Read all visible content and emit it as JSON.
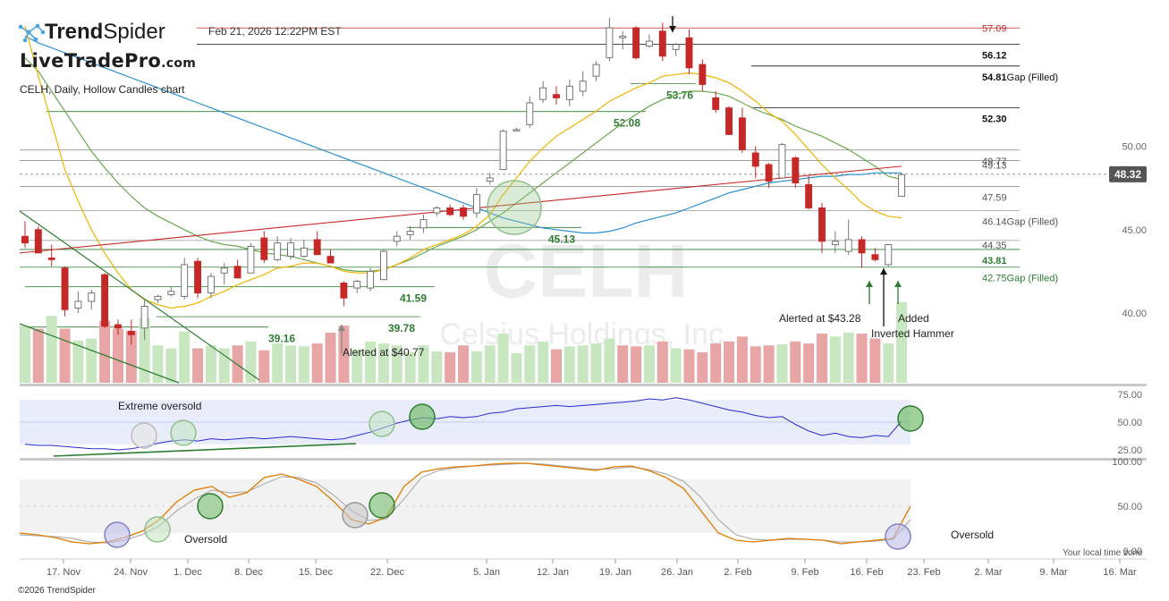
{
  "header": {
    "brand_name": "TrendSpider",
    "brand_bold": "Trend",
    "brand_light": "Spider",
    "datestamp": "Feb 21, 2026 12:22PM EST",
    "watermark_site": "LiveTradePro",
    "watermark_domain": ".com",
    "subtitle": "CELH, Daily, Hollow Candles chart"
  },
  "footer": {
    "copyright": "©2026 TrendSpider",
    "local_time_label": "Your local time zone"
  },
  "chart_data": {
    "type": "candlestick",
    "symbol": "CELH",
    "company": "Celsius Holdings, Inc.",
    "last_price": "48.32",
    "x_ticks": [
      "17. Nov",
      "24. Nov",
      "1. Dec",
      "8. Dec",
      "15. Dec",
      "22. Dec",
      "5. Jan",
      "12. Jan",
      "19. Jan",
      "26. Jan",
      "2. Feb",
      "9. Feb",
      "16. Feb",
      "23. Feb",
      "2. Mar",
      "9. Mar",
      "16. Mar"
    ],
    "y_ticks": [
      "50.00",
      "45.00",
      "40.00"
    ],
    "colors": {
      "up": "#ffffff",
      "down": "#c62828",
      "sma_short": "#f0b400",
      "sma_mid": "#6aa84f",
      "sma_long": "#2a8fd0",
      "trendline": "#c62828",
      "volume_up": "#c8e6c0",
      "volume_down": "#e8a5a5",
      "rsi": "#2b2bcc",
      "stoch_k": "#e07b00",
      "stoch_d": "#b0b0b0",
      "level_green": "#2e7d32",
      "level_red": "#c62828"
    },
    "candles": [
      {
        "o": 44.6,
        "h": 45.5,
        "l": 43.9,
        "c": 44.2
      },
      {
        "o": 45.0,
        "h": 45.2,
        "l": 43.7,
        "c": 43.6
      },
      {
        "o": 43.3,
        "h": 44.1,
        "l": 42.8,
        "c": 43.2
      },
      {
        "o": 42.7,
        "h": 42.8,
        "l": 39.8,
        "c": 40.2
      },
      {
        "o": 40.3,
        "h": 41.3,
        "l": 40.0,
        "c": 40.7
      },
      {
        "o": 40.7,
        "h": 41.4,
        "l": 40.2,
        "c": 41.2
      },
      {
        "o": 42.3,
        "h": 42.4,
        "l": 39.1,
        "c": 39.2
      },
      {
        "o": 39.3,
        "h": 39.6,
        "l": 38.7,
        "c": 39.1
      },
      {
        "o": 38.9,
        "h": 39.6,
        "l": 38.1,
        "c": 38.7
      },
      {
        "o": 39.1,
        "h": 40.8,
        "l": 38.4,
        "c": 40.4
      },
      {
        "o": 40.8,
        "h": 41.1,
        "l": 40.6,
        "c": 41.0
      },
      {
        "o": 41.1,
        "h": 41.6,
        "l": 41.0,
        "c": 41.3
      },
      {
        "o": 41.0,
        "h": 43.3,
        "l": 40.8,
        "c": 42.9
      },
      {
        "o": 43.1,
        "h": 43.3,
        "l": 40.9,
        "c": 41.2
      },
      {
        "o": 41.2,
        "h": 42.4,
        "l": 40.9,
        "c": 42.2
      },
      {
        "o": 42.4,
        "h": 43.0,
        "l": 41.7,
        "c": 42.7
      },
      {
        "o": 42.8,
        "h": 43.2,
        "l": 42.2,
        "c": 42.1
      },
      {
        "o": 42.4,
        "h": 44.2,
        "l": 42.4,
        "c": 44.0
      },
      {
        "o": 44.5,
        "h": 44.9,
        "l": 43.0,
        "c": 43.2
      },
      {
        "o": 43.2,
        "h": 44.6,
        "l": 43.1,
        "c": 44.2
      },
      {
        "o": 43.4,
        "h": 44.5,
        "l": 43.2,
        "c": 44.2
      },
      {
        "o": 43.4,
        "h": 44.4,
        "l": 43.3,
        "c": 43.9
      },
      {
        "o": 44.4,
        "h": 44.9,
        "l": 43.5,
        "c": 43.5
      },
      {
        "o": 43.4,
        "h": 43.8,
        "l": 43.0,
        "c": 43.0
      },
      {
        "o": 41.8,
        "h": 41.9,
        "l": 40.4,
        "c": 40.9
      },
      {
        "o": 41.5,
        "h": 42.0,
        "l": 41.2,
        "c": 41.9
      },
      {
        "o": 41.5,
        "h": 42.7,
        "l": 41.3,
        "c": 42.5
      },
      {
        "o": 42.0,
        "h": 43.8,
        "l": 42.0,
        "c": 43.7
      },
      {
        "o": 44.3,
        "h": 44.9,
        "l": 44.0,
        "c": 44.6
      },
      {
        "o": 44.7,
        "h": 45.2,
        "l": 44.4,
        "c": 44.9
      },
      {
        "o": 45.1,
        "h": 45.9,
        "l": 44.8,
        "c": 45.6
      },
      {
        "o": 46.0,
        "h": 46.4,
        "l": 45.8,
        "c": 46.3
      },
      {
        "o": 46.3,
        "h": 46.5,
        "l": 45.8,
        "c": 45.9
      },
      {
        "o": 46.3,
        "h": 46.5,
        "l": 45.6,
        "c": 45.8
      },
      {
        "o": 46.0,
        "h": 47.5,
        "l": 45.7,
        "c": 47.1
      },
      {
        "o": 47.9,
        "h": 48.4,
        "l": 47.7,
        "c": 48.1
      },
      {
        "o": 48.6,
        "h": 51.0,
        "l": 48.6,
        "c": 50.9
      },
      {
        "o": 51.0,
        "h": 51.1,
        "l": 50.9,
        "c": 51.0
      },
      {
        "o": 51.3,
        "h": 53.0,
        "l": 51.1,
        "c": 52.6
      },
      {
        "o": 52.8,
        "h": 53.9,
        "l": 52.6,
        "c": 53.5
      },
      {
        "o": 53.1,
        "h": 53.6,
        "l": 52.5,
        "c": 52.9
      },
      {
        "o": 52.8,
        "h": 54.0,
        "l": 52.4,
        "c": 53.6
      },
      {
        "o": 53.3,
        "h": 54.5,
        "l": 53.0,
        "c": 53.9
      },
      {
        "o": 54.2,
        "h": 55.1,
        "l": 53.9,
        "c": 54.9
      },
      {
        "o": 55.3,
        "h": 57.7,
        "l": 55.1,
        "c": 57.1
      },
      {
        "o": 56.5,
        "h": 56.9,
        "l": 55.8,
        "c": 56.6
      },
      {
        "o": 57.1,
        "h": 57.2,
        "l": 55.2,
        "c": 55.3
      },
      {
        "o": 56.0,
        "h": 56.7,
        "l": 55.9,
        "c": 56.3
      },
      {
        "o": 56.9,
        "h": 57.4,
        "l": 55.1,
        "c": 55.4
      },
      {
        "o": 55.8,
        "h": 56.2,
        "l": 55.4,
        "c": 56.1
      },
      {
        "o": 56.5,
        "h": 57.0,
        "l": 54.3,
        "c": 54.7
      },
      {
        "o": 54.9,
        "h": 55.2,
        "l": 53.3,
        "c": 53.7
      },
      {
        "o": 52.9,
        "h": 53.3,
        "l": 52.0,
        "c": 52.2
      },
      {
        "o": 52.3,
        "h": 52.4,
        "l": 50.7,
        "c": 50.7
      },
      {
        "o": 51.7,
        "h": 52.3,
        "l": 49.6,
        "c": 49.8
      },
      {
        "o": 49.6,
        "h": 50.0,
        "l": 48.1,
        "c": 48.8
      },
      {
        "o": 48.9,
        "h": 49.0,
        "l": 47.5,
        "c": 47.9
      },
      {
        "o": 48.1,
        "h": 50.2,
        "l": 48.1,
        "c": 50.1
      },
      {
        "o": 49.3,
        "h": 49.4,
        "l": 47.5,
        "c": 47.8
      },
      {
        "o": 47.7,
        "h": 48.2,
        "l": 46.2,
        "c": 46.3
      },
      {
        "o": 46.3,
        "h": 46.6,
        "l": 43.6,
        "c": 44.3
      },
      {
        "o": 44.1,
        "h": 44.9,
        "l": 43.6,
        "c": 44.3
      },
      {
        "o": 43.7,
        "h": 45.6,
        "l": 43.5,
        "c": 44.4
      },
      {
        "o": 44.4,
        "h": 44.6,
        "l": 42.7,
        "c": 43.6
      },
      {
        "o": 43.5,
        "h": 43.9,
        "l": 43.1,
        "c": 43.2
      },
      {
        "o": 42.9,
        "h": 44.0,
        "l": 42.8,
        "c": 44.1
      },
      {
        "o": 47.0,
        "h": 48.4,
        "l": 47.0,
        "c": 48.3
      }
    ],
    "sma_short": [
      57.2,
      54.2,
      51.4,
      48.6,
      46.7,
      45.0,
      43.6,
      42.4,
      41.4,
      40.8,
      40.5,
      40.3,
      40.4,
      40.6,
      41.0,
      41.3,
      41.7,
      42.0,
      42.3,
      42.7,
      42.8,
      43.0,
      43.0,
      42.8,
      42.5,
      42.4,
      42.4,
      42.6,
      42.9,
      43.3,
      43.8,
      44.1,
      44.4,
      44.7,
      45.2,
      45.9,
      47.1,
      48.1,
      49.1,
      49.9,
      50.6,
      51.1,
      51.6,
      52.1,
      52.7,
      53.1,
      53.5,
      53.8,
      54.2,
      54.3,
      54.4,
      54.3,
      54.1,
      53.8,
      53.3,
      52.7,
      52.0,
      51.5,
      50.7,
      49.8,
      48.9,
      48.1,
      47.4,
      46.6,
      46.1,
      45.8,
      45.7
    ],
    "sma_mid": [
      55.3,
      54.5,
      53.3,
      52.1,
      50.9,
      49.7,
      48.7,
      47.8,
      47.0,
      46.3,
      45.8,
      45.4,
      45.0,
      44.6,
      44.3,
      44.1,
      44.0,
      43.8,
      43.6,
      43.5,
      43.4,
      43.2,
      43.0,
      42.8,
      42.6,
      42.5,
      42.5,
      42.6,
      42.9,
      43.2,
      43.6,
      44.0,
      44.3,
      44.6,
      45.0,
      45.5,
      46.0,
      46.6,
      47.2,
      47.8,
      48.4,
      49.0,
      49.6,
      50.2,
      50.8,
      51.4,
      51.9,
      52.4,
      52.8,
      53.1,
      53.3,
      53.3,
      53.2,
      53.0,
      52.6,
      52.2,
      51.9,
      51.6,
      51.2,
      50.9,
      50.6,
      50.2,
      49.8,
      49.3,
      48.8,
      48.2,
      48.0
    ],
    "sma_long": [
      56.6,
      56.2,
      55.9,
      55.6,
      55.3,
      55.0,
      54.7,
      54.4,
      54.1,
      53.8,
      53.5,
      53.2,
      52.9,
      52.6,
      52.3,
      52.0,
      51.7,
      51.4,
      51.1,
      50.8,
      50.5,
      50.2,
      49.9,
      49.6,
      49.3,
      49.0,
      48.7,
      48.4,
      48.1,
      47.8,
      47.5,
      47.2,
      46.9,
      46.6,
      46.3,
      46.0,
      45.7,
      45.5,
      45.3,
      45.1,
      45.0,
      44.9,
      44.8,
      44.8,
      44.9,
      45.1,
      45.4,
      45.6,
      45.8,
      46.0,
      46.3,
      46.6,
      46.9,
      47.2,
      47.4,
      47.6,
      47.8,
      47.9,
      48.0,
      48.1,
      48.2,
      48.2,
      48.3,
      48.3,
      48.4,
      48.4,
      48.4
    ],
    "trendline": {
      "from": {
        "i": 0,
        "price": 43.6
      },
      "to": {
        "i": 66,
        "price": 48.8
      }
    },
    "levels": [
      {
        "price": 57.09,
        "label": "57.09",
        "color": "red"
      },
      {
        "price": 56.12,
        "label": "56.12",
        "color": "black"
      },
      {
        "price": 54.81,
        "label": "54.81",
        "suffix": "Gap (Filled)",
        "color": "black"
      },
      {
        "price": 52.3,
        "label": "52.30",
        "color": "black"
      },
      {
        "price": 49.77,
        "label": "49.77",
        "color": "gray"
      },
      {
        "price": 49.13,
        "label": "49.13",
        "color": "gray"
      },
      {
        "price": 47.59,
        "label": "47.59",
        "color": "gray"
      },
      {
        "price": 46.14,
        "label": "46.14",
        "suffix": "Gap (Filled)",
        "color": "gray"
      },
      {
        "price": 44.35,
        "label": "44.35",
        "color": "gray"
      },
      {
        "price": 43.81,
        "label": "43.81",
        "color": "green"
      },
      {
        "price": 42.75,
        "label": "42.75",
        "suffix": "Gap (Filled)",
        "color": "green"
      }
    ],
    "green_levels": [
      {
        "price": 53.76,
        "label": "53.76"
      },
      {
        "price": 52.08,
        "label": "52.08"
      },
      {
        "price": 45.13,
        "label": "45.13"
      },
      {
        "price": 41.59,
        "label": "41.59"
      },
      {
        "price": 39.78,
        "label": "39.78"
      },
      {
        "price": 39.16,
        "label": "39.16"
      }
    ],
    "volume": [
      0.58,
      0.55,
      0.68,
      0.55,
      0.43,
      0.45,
      0.63,
      0.55,
      0.53,
      0.66,
      0.38,
      0.35,
      0.52,
      0.35,
      0.38,
      0.35,
      0.38,
      0.42,
      0.33,
      0.4,
      0.38,
      0.37,
      0.4,
      0.51,
      0.58,
      0.34,
      0.42,
      0.4,
      0.38,
      0.31,
      0.38,
      0.32,
      0.31,
      0.38,
      0.32,
      0.38,
      0.5,
      0.3,
      0.38,
      0.42,
      0.34,
      0.37,
      0.38,
      0.4,
      0.45,
      0.38,
      0.37,
      0.38,
      0.42,
      0.35,
      0.34,
      0.31,
      0.4,
      0.42,
      0.47,
      0.37,
      0.38,
      0.39,
      0.42,
      0.4,
      0.5,
      0.47,
      0.51,
      0.5,
      0.45,
      0.4,
      0.82
    ],
    "volume_up": [
      true,
      false,
      true,
      false,
      true,
      true,
      false,
      false,
      false,
      true,
      true,
      true,
      true,
      false,
      true,
      true,
      false,
      true,
      false,
      true,
      true,
      true,
      false,
      false,
      false,
      true,
      true,
      true,
      true,
      true,
      true,
      true,
      false,
      false,
      true,
      true,
      true,
      true,
      true,
      true,
      false,
      true,
      true,
      true,
      true,
      false,
      false,
      true,
      false,
      true,
      false,
      false,
      false,
      false,
      false,
      false,
      false,
      true,
      false,
      false,
      false,
      true,
      true,
      false,
      false,
      true,
      true
    ],
    "rsi": {
      "levels": [
        "75.00",
        "50.00",
        "25.00"
      ],
      "values": [
        30,
        29,
        29,
        28,
        27,
        26,
        26,
        25,
        26,
        28,
        31,
        33,
        34,
        33,
        35,
        34,
        35,
        36,
        35,
        36,
        37,
        36,
        35,
        34,
        35,
        38,
        41,
        45,
        49,
        52,
        54,
        53,
        55,
        54,
        55,
        58,
        59,
        62,
        63,
        64,
        65,
        64,
        65,
        66,
        67,
        68,
        69,
        71,
        70,
        72,
        70,
        67,
        64,
        61,
        59,
        56,
        54,
        55,
        48,
        42,
        38,
        40,
        37,
        36,
        38,
        37,
        51
      ]
    },
    "stoch": {
      "levels": [
        "100.00",
        "50.00",
        "0.00"
      ],
      "k": [
        20,
        18,
        15,
        10,
        8,
        10,
        15,
        22,
        35,
        55,
        68,
        72,
        60,
        65,
        82,
        86,
        80,
        72,
        55,
        35,
        30,
        38,
        72,
        88,
        92,
        94,
        95,
        97,
        98,
        98,
        96,
        94,
        92,
        90,
        94,
        95,
        90,
        82,
        70,
        45,
        20,
        12,
        10,
        12,
        14,
        13,
        12,
        8,
        10,
        12,
        14,
        50
      ],
      "d": [
        18,
        17,
        16,
        14,
        10,
        9,
        12,
        18,
        28,
        45,
        58,
        68,
        65,
        66,
        75,
        83,
        82,
        76,
        62,
        45,
        34,
        36,
        58,
        82,
        90,
        93,
        95,
        96,
        97,
        98,
        97,
        95,
        93,
        91,
        92,
        94,
        91,
        86,
        78,
        60,
        35,
        18,
        13,
        12,
        13,
        13,
        12,
        10,
        10,
        11,
        13,
        35
      ]
    },
    "annotations": {
      "alert_1": "Alerted at $40.77",
      "alert_2": "Alerted at $43.28",
      "inverted_hammer": "Inverted Hammer",
      "added": "Added",
      "extreme_oversold": "Extreme oversold",
      "oversold_1": "Oversold",
      "oversold_2": "Oversold"
    }
  }
}
